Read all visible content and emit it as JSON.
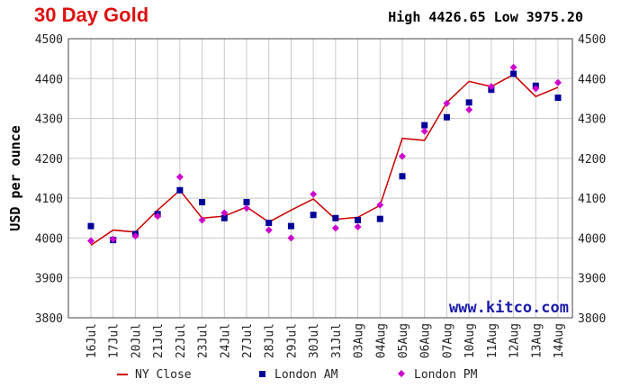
{
  "chart_data": {
    "type": "line",
    "title": "30 Day Gold",
    "subtitle": "High 4426.65 Low 3975.20",
    "watermark": "www.kitco.com",
    "y_label": "USD per ounce",
    "categories": [
      "16Jul",
      "17Jul",
      "20Jul",
      "21Jul",
      "22Jul",
      "23Jul",
      "24Jul",
      "27Jul",
      "28Jul",
      "29Jul",
      "30Jul",
      "31Jul",
      "03Aug",
      "04Aug",
      "05Aug",
      "06Aug",
      "07Aug",
      "10Aug",
      "11Aug",
      "12Aug",
      "13Aug",
      "14Aug"
    ],
    "series": [
      {
        "name": "NY Close",
        "color": "#cc0000",
        "marker": "line",
        "values": [
          3982,
          4020,
          4015,
          4070,
          4120,
          4050,
          4055,
          4078,
          4040,
          4070,
          4098,
          4047,
          4052,
          4082,
          4250,
          4245,
          4340,
          4393,
          4380,
          4410,
          4355,
          4378
        ]
      },
      {
        "name": "London AM",
        "color": "#000099",
        "marker": "square",
        "values": [
          4030,
          3995,
          4010,
          4060,
          4120,
          4090,
          4050,
          4090,
          4038,
          4030,
          4058,
          4050,
          4045,
          4048,
          4155,
          4283,
          4303,
          4340,
          4372,
          4412,
          4382,
          4352
        ]
      },
      {
        "name": "London PM",
        "color": "#cc00cc",
        "marker": "diamond",
        "values": [
          3993,
          3997,
          4005,
          4055,
          4153,
          4045,
          4063,
          4075,
          4020,
          4000,
          4110,
          4025,
          4028,
          4083,
          4205,
          4268,
          4338,
          4322,
          4380,
          4428,
          4375,
          4390
        ]
      }
    ],
    "ylim": [
      3800,
      4500
    ],
    "yticks": [
      3800,
      3900,
      4000,
      4100,
      4200,
      4300,
      4400,
      4500
    ],
    "grid": true
  }
}
